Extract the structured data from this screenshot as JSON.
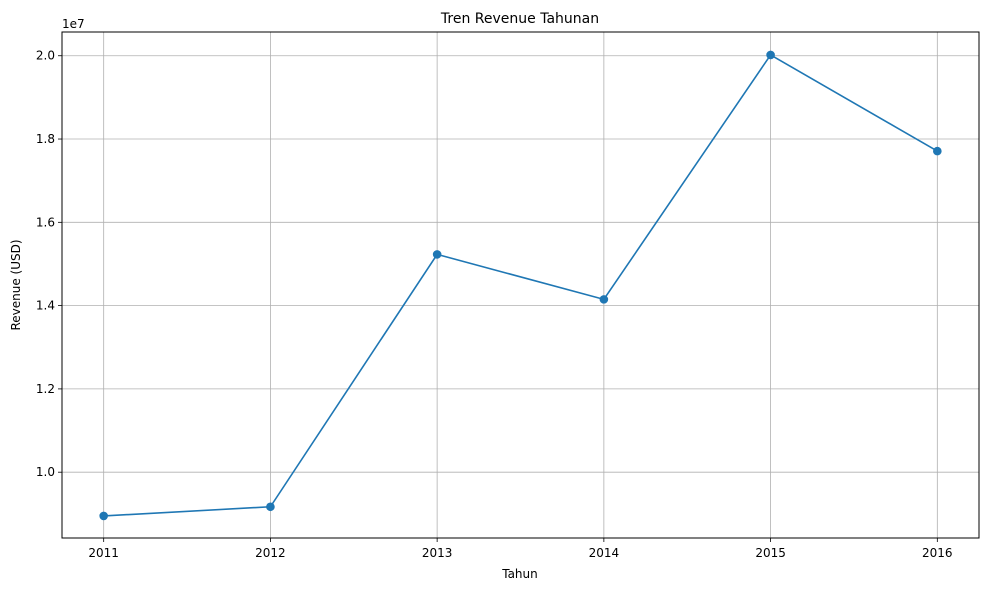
{
  "chart_data": {
    "type": "line",
    "title": "Tren Revenue Tahunan",
    "xlabel": "Tahun",
    "ylabel": "Revenue (USD)",
    "y_offset_label": "1e7",
    "x": [
      2011,
      2012,
      2013,
      2014,
      2015,
      2016
    ],
    "y": [
      8950000,
      9170000,
      15230000,
      14150000,
      20020000,
      17710000
    ],
    "xlim": [
      2010.75,
      2016.25
    ],
    "ylim": [
      8420000,
      20570000
    ],
    "x_ticks": [
      2011,
      2012,
      2013,
      2014,
      2015,
      2016
    ],
    "x_tick_labels": [
      "2011",
      "2012",
      "2013",
      "2014",
      "2015",
      "2016"
    ],
    "y_ticks": [
      10000000,
      12000000,
      14000000,
      16000000,
      18000000,
      20000000
    ],
    "y_tick_labels": [
      "1.0",
      "1.2",
      "1.4",
      "1.6",
      "1.8",
      "2.0"
    ],
    "grid": true,
    "line_color": "#1f77b4",
    "marker": "circle"
  }
}
